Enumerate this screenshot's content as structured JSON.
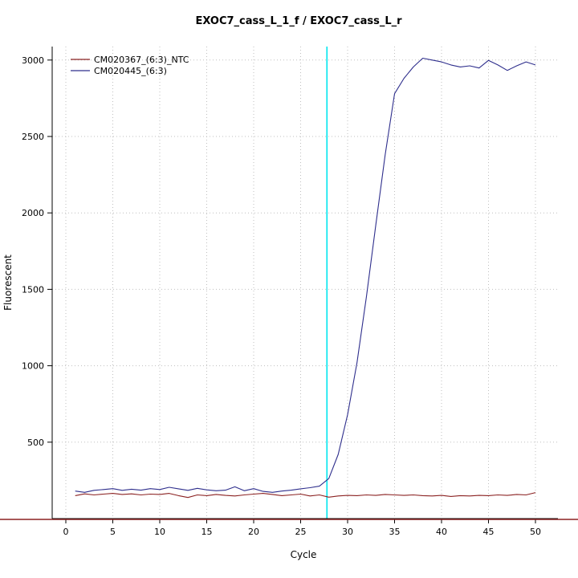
{
  "chart_data": {
    "type": "line",
    "title": "EXOC7_cass_L_1_f / EXOC7_cass_L_r",
    "xlabel": "Cycle",
    "ylabel": "Fluorescent",
    "xlim": [
      0,
      50
    ],
    "ylim": [
      0,
      3100
    ],
    "xticks": [
      0,
      5,
      10,
      15,
      20,
      25,
      30,
      35,
      40,
      45,
      50
    ],
    "yticks": [
      500,
      1000,
      1500,
      2000,
      2500,
      3000
    ],
    "grid": "dotted",
    "grid_color": "#bfbfbf",
    "legend_position": "top-left",
    "x": [
      1,
      2,
      3,
      4,
      5,
      6,
      7,
      8,
      9,
      10,
      11,
      12,
      13,
      14,
      15,
      16,
      17,
      18,
      19,
      20,
      21,
      22,
      23,
      24,
      25,
      26,
      27,
      28,
      29,
      30,
      31,
      32,
      33,
      34,
      35,
      36,
      37,
      38,
      39,
      40,
      41,
      42,
      43,
      44,
      45,
      46,
      47,
      48,
      49,
      50
    ],
    "series": [
      {
        "name": "CM020367_(6:3)_NTC",
        "color": "#8b2222",
        "values": [
          150,
          162,
          155,
          160,
          165,
          158,
          162,
          155,
          160,
          158,
          165,
          150,
          138,
          155,
          150,
          158,
          152,
          148,
          155,
          160,
          165,
          158,
          150,
          155,
          160,
          148,
          155,
          140,
          148,
          152,
          150,
          155,
          152,
          158,
          155,
          152,
          155,
          150,
          148,
          152,
          145,
          150,
          148,
          152,
          150,
          155,
          152,
          158,
          155,
          170
        ]
      },
      {
        "name": "CM020445_(6:3)",
        "color": "#2e2e8c",
        "values": [
          180,
          172,
          185,
          190,
          196,
          185,
          192,
          186,
          196,
          190,
          205,
          195,
          185,
          198,
          188,
          182,
          186,
          208,
          182,
          196,
          178,
          172,
          180,
          186,
          195,
          202,
          212,
          262,
          420,
          680,
          1020,
          1450,
          1920,
          2380,
          2780,
          2880,
          2955,
          3012,
          3000,
          2988,
          2968,
          2955,
          2962,
          2948,
          2998,
          2968,
          2932,
          2962,
          2988,
          2968
        ]
      }
    ],
    "threshold_cycle_line": {
      "x": 27.8,
      "color": "#00e5ee"
    },
    "threshold_value_line": {
      "y": 0,
      "color": "#8b2222"
    }
  }
}
